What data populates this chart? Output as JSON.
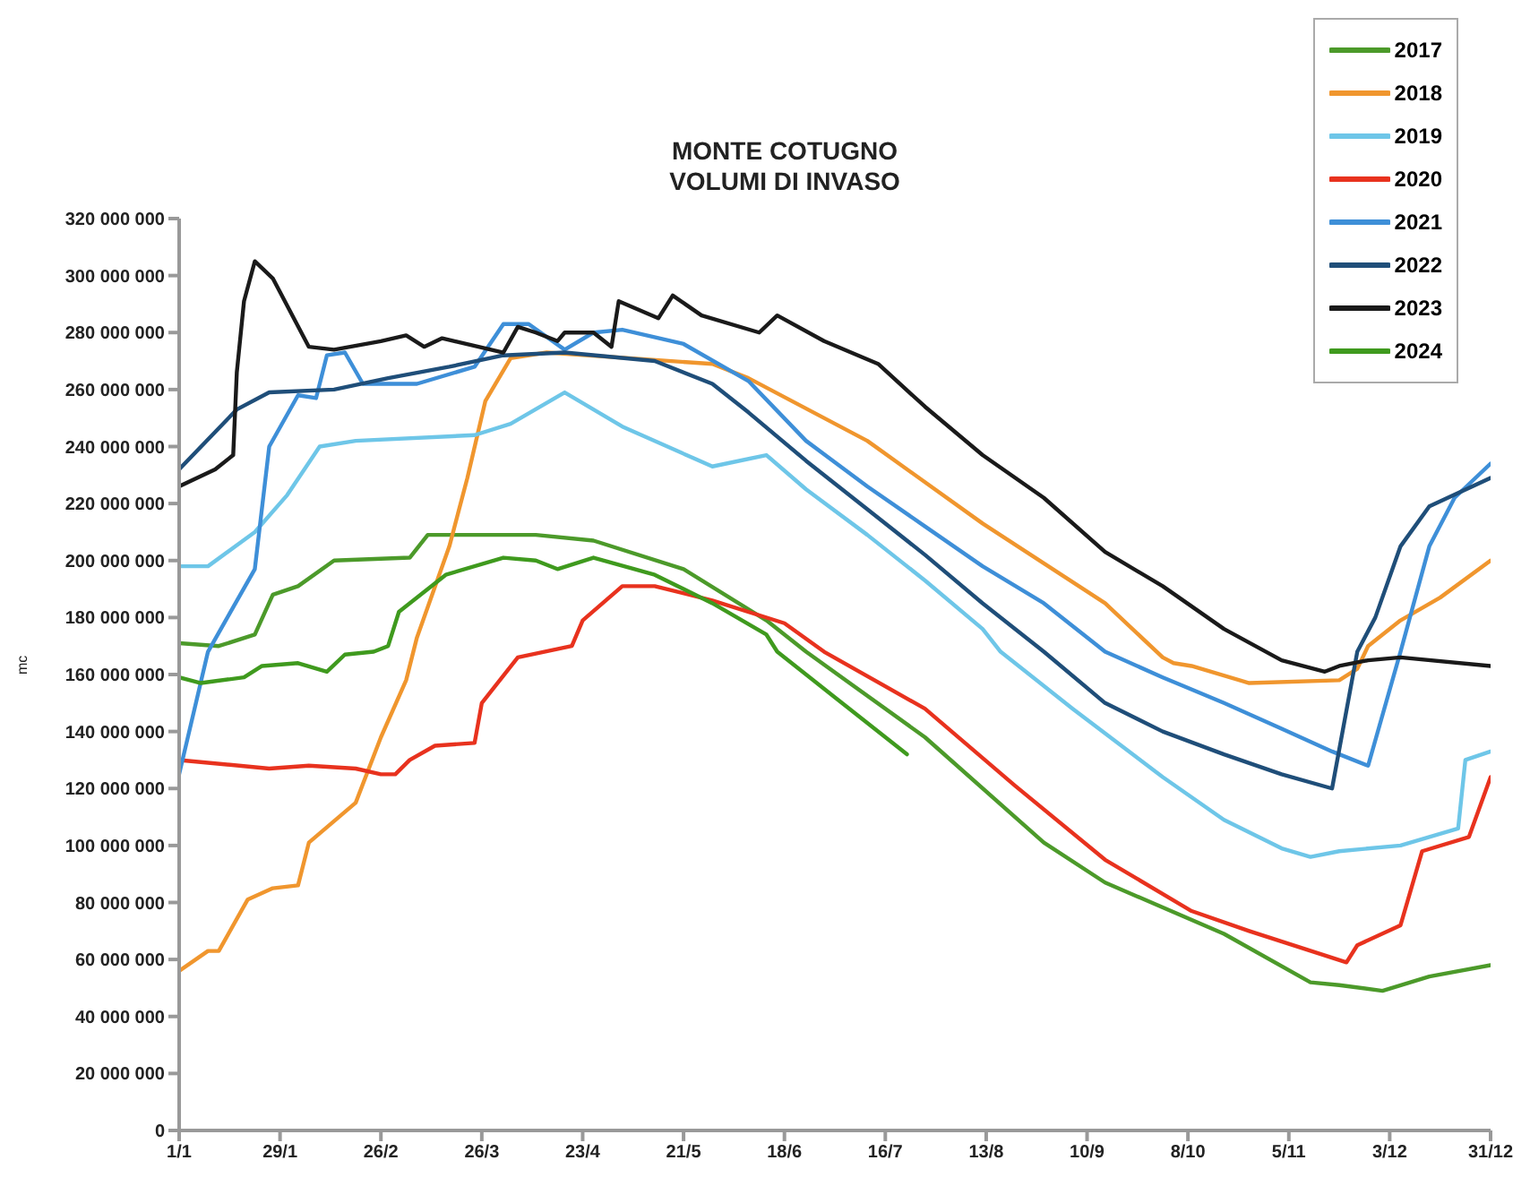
{
  "chart_data": {
    "type": "line",
    "title": "MONTE COTUGNO",
    "subtitle": "VOLUMI DI INVASO",
    "ylabel": "mc",
    "xlim": [
      "--01-01",
      "--12-31"
    ],
    "xticks": [
      {
        "value": "--01-01",
        "label": "1/1"
      },
      {
        "value": "--01-29",
        "label": "29/1"
      },
      {
        "value": "--02-26",
        "label": "26/2"
      },
      {
        "value": "--03-26",
        "label": "26/3"
      },
      {
        "value": "--04-23",
        "label": "23/4"
      },
      {
        "value": "--05-21",
        "label": "21/5"
      },
      {
        "value": "--06-18",
        "label": "18/6"
      },
      {
        "value": "--07-16",
        "label": "16/7"
      },
      {
        "value": "--08-13",
        "label": "13/8"
      },
      {
        "value": "--09-10",
        "label": "10/9"
      },
      {
        "value": "--10-08",
        "label": "8/10"
      },
      {
        "value": "--11-05",
        "label": "5/11"
      },
      {
        "value": "--12-03",
        "label": "3/12"
      },
      {
        "value": "--12-31",
        "label": "31/12"
      }
    ],
    "ylim": [
      0,
      320000000
    ],
    "yticks": [
      0,
      {
        "value": 20000000,
        "label": "20 000 000"
      },
      {
        "value": 40000000,
        "label": "40 000 000"
      },
      {
        "value": 60000000,
        "label": "60 000 000"
      },
      {
        "value": 80000000,
        "label": "80 000 000"
      },
      {
        "value": 100000000,
        "label": "100 000 000"
      },
      {
        "value": 120000000,
        "label": "120 000 000"
      },
      {
        "value": 140000000,
        "label": "140 000 000"
      },
      {
        "value": 160000000,
        "label": "160 000 000"
      },
      {
        "value": 180000000,
        "label": "180 000 000"
      },
      {
        "value": 200000000,
        "label": "200 000 000"
      },
      {
        "value": 220000000,
        "label": "220 000 000"
      },
      {
        "value": 240000000,
        "label": "240 000 000"
      },
      {
        "value": 260000000,
        "label": "260 000 000"
      },
      {
        "value": 280000000,
        "label": "280 000 000"
      },
      {
        "value": 300000000,
        "label": "300 000 000"
      },
      {
        "value": 320000000,
        "label": "320 000 000"
      }
    ],
    "grid": false,
    "legend": "top right",
    "marker": "none",
    "line_style": "solid",
    "series": [
      {
        "name": "2017",
        "color": "#4c9a2a",
        "x": [
          "--01-01",
          "--01-12",
          "--01-22",
          "--01-27",
          "--02-03",
          "--02-13",
          "--03-06",
          "--03-11",
          "--04-10",
          "--04-26",
          "--05-21",
          "--06-13",
          "--06-24",
          "--07-27",
          "--08-29",
          "--09-15",
          "--10-18",
          "--11-11",
          "--11-19",
          "--12-01",
          "--12-14",
          "--12-31"
        ],
        "values": [
          171000000,
          170000000,
          174000000,
          188000000,
          191000000,
          200000000,
          201000000,
          209000000,
          209000000,
          207000000,
          197000000,
          179000000,
          168000000,
          138000000,
          101000000,
          87000000,
          69000000,
          52000000,
          51000000,
          49000000,
          54000000,
          58000000
        ]
      },
      {
        "name": "2018",
        "color": "#f0962e",
        "x": [
          "--01-01",
          "--01-09",
          "--01-12",
          "--01-20",
          "--01-27",
          "--02-03",
          "--02-06",
          "--02-19",
          "--02-26",
          "--03-05",
          "--03-08",
          "--03-17",
          "--03-22",
          "--03-27",
          "--04-03",
          "--04-13",
          "--05-29",
          "--06-08",
          "--07-11",
          "--08-12",
          "--09-15",
          "--10-01",
          "--10-04",
          "--10-09",
          "--10-25",
          "--11-19",
          "--11-24",
          "--11-27",
          "--12-06",
          "--12-17",
          "--12-31"
        ],
        "values": [
          56000000,
          63000000,
          63000000,
          81000000,
          85000000,
          86000000,
          101000000,
          115000000,
          138000000,
          158000000,
          173000000,
          205000000,
          229000000,
          256000000,
          271000000,
          273000000,
          269000000,
          264000000,
          242000000,
          213000000,
          185000000,
          166000000,
          164000000,
          163000000,
          157000000,
          158000000,
          162000000,
          170000000,
          179000000,
          187000000,
          200000000
        ]
      },
      {
        "name": "2019",
        "color": "#6ec6e8",
        "x": [
          "--01-01",
          "--01-09",
          "--01-22",
          "--01-31",
          "--02-09",
          "--02-19",
          "--03-24",
          "--04-03",
          "--04-18",
          "--05-04",
          "--05-29",
          "--06-13",
          "--06-24",
          "--07-11",
          "--07-27",
          "--08-12",
          "--08-17",
          "--09-06",
          "--10-01",
          "--10-18",
          "--11-03",
          "--11-11",
          "--11-19",
          "--12-06",
          "--12-22",
          "--12-24",
          "--12-31"
        ],
        "values": [
          198000000,
          198000000,
          210000000,
          223000000,
          240000000,
          242000000,
          244000000,
          248000000,
          259000000,
          247000000,
          233000000,
          237000000,
          225000000,
          209000000,
          193000000,
          176000000,
          168000000,
          148000000,
          124000000,
          109000000,
          99000000,
          96000000,
          98000000,
          100000000,
          106000000,
          130000000,
          133000000
        ]
      },
      {
        "name": "2020",
        "color": "#e8321e",
        "x": [
          "--01-01",
          "--01-26",
          "--02-06",
          "--02-19",
          "--02-26",
          "--03-02",
          "--03-06",
          "--03-13",
          "--03-24",
          "--03-26",
          "--03-31",
          "--04-05",
          "--04-20",
          "--04-23",
          "--05-04",
          "--05-13",
          "--05-29",
          "--06-18",
          "--06-29",
          "--07-27",
          "--08-21",
          "--09-15",
          "--10-09",
          "--10-25",
          "--11-21",
          "--11-24",
          "--12-06",
          "--12-12",
          "--12-25",
          "--12-31"
        ],
        "values": [
          130000000,
          127000000,
          128000000,
          127000000,
          125000000,
          125000000,
          130000000,
          135000000,
          136000000,
          150000000,
          158000000,
          166000000,
          170000000,
          179000000,
          191000000,
          191000000,
          186000000,
          178000000,
          168000000,
          148000000,
          121000000,
          95000000,
          77000000,
          70000000,
          59000000,
          65000000,
          72000000,
          98000000,
          103000000,
          124000000
        ]
      },
      {
        "name": "2021",
        "color": "#3e8fd8",
        "x": [
          "--01-01",
          "--01-09",
          "--01-22",
          "--01-26",
          "--02-03",
          "--02-08",
          "--02-11",
          "--02-16",
          "--02-21",
          "--03-08",
          "--03-24",
          "--04-01",
          "--04-08",
          "--04-18",
          "--04-26",
          "--05-04",
          "--05-21",
          "--06-08",
          "--06-24",
          "--07-11",
          "--07-27",
          "--08-12",
          "--08-29",
          "--09-15",
          "--10-01",
          "--10-18",
          "--11-03",
          "--11-17",
          "--11-27",
          "--12-06",
          "--12-14",
          "--12-21",
          "--12-31"
        ],
        "values": [
          125000000,
          168000000,
          197000000,
          240000000,
          258000000,
          257000000,
          272000000,
          273000000,
          262000000,
          262000000,
          268000000,
          283000000,
          283000000,
          274000000,
          280000000,
          281000000,
          276000000,
          263000000,
          242000000,
          226000000,
          212000000,
          198000000,
          185000000,
          168000000,
          159000000,
          150000000,
          141000000,
          133000000,
          128000000,
          168000000,
          205000000,
          222000000,
          234000000
        ]
      },
      {
        "name": "2022",
        "color": "#1f4e79",
        "x": [
          "--01-01",
          "--01-17",
          "--01-26",
          "--02-13",
          "--02-28",
          "--03-17",
          "--04-01",
          "--04-18",
          "--05-13",
          "--05-29",
          "--06-08",
          "--06-24",
          "--07-11",
          "--07-27",
          "--08-12",
          "--08-29",
          "--09-15",
          "--10-01",
          "--10-18",
          "--11-03",
          "--11-17",
          "--11-24",
          "--11-29",
          "--12-06",
          "--12-14",
          "--12-31"
        ],
        "values": [
          232000000,
          253000000,
          259000000,
          260000000,
          264000000,
          268000000,
          272000000,
          273000000,
          270000000,
          262000000,
          252000000,
          235000000,
          218000000,
          202000000,
          185000000,
          168000000,
          150000000,
          140000000,
          132000000,
          125000000,
          120000000,
          168000000,
          180000000,
          205000000,
          219000000,
          229000000
        ]
      },
      {
        "name": "2023",
        "color": "#1a1a1a",
        "x": [
          "--01-01",
          "--01-11",
          "--01-16",
          "--01-17",
          "--01-19",
          "--01-22",
          "--01-27",
          "--02-06",
          "--02-13",
          "--02-26",
          "--03-05",
          "--03-10",
          "--03-15",
          "--04-01",
          "--04-05",
          "--04-10",
          "--04-16",
          "--04-18",
          "--04-26",
          "--05-01",
          "--05-03",
          "--05-14",
          "--05-18",
          "--05-26",
          "--06-11",
          "--06-16",
          "--06-29",
          "--07-14",
          "--07-27",
          "--08-12",
          "--08-29",
          "--09-15",
          "--10-01",
          "--10-18",
          "--11-03",
          "--11-15",
          "--11-19",
          "--11-27",
          "--12-06",
          "--12-31"
        ],
        "values": [
          226000000,
          232000000,
          237000000,
          266000000,
          291000000,
          305000000,
          299000000,
          275000000,
          274000000,
          277000000,
          279000000,
          275000000,
          278000000,
          273000000,
          282000000,
          280000000,
          277000000,
          280000000,
          280000000,
          275000000,
          291000000,
          285000000,
          293000000,
          286000000,
          280000000,
          286000000,
          277000000,
          269000000,
          254000000,
          237000000,
          222000000,
          203000000,
          191000000,
          176000000,
          165000000,
          161000000,
          163000000,
          165000000,
          166000000,
          163000000
        ]
      },
      {
        "name": "2024",
        "color": "#3f9a1e",
        "x": [
          "--01-01",
          "--01-07",
          "--01-19",
          "--01-24",
          "--02-03",
          "--02-11",
          "--02-16",
          "--02-24",
          "--02-28",
          "--03-03",
          "--03-16",
          "--04-01",
          "--04-10",
          "--04-16",
          "--04-26",
          "--05-13",
          "--05-29",
          "--06-13",
          "--06-16",
          "--07-02",
          "--07-22"
        ],
        "values": [
          159000000,
          157000000,
          159000000,
          163000000,
          164000000,
          161000000,
          167000000,
          168000000,
          170000000,
          182000000,
          195000000,
          201000000,
          200000000,
          197000000,
          201000000,
          195000000,
          185000000,
          174000000,
          168000000,
          152000000,
          132000000
        ]
      }
    ]
  }
}
